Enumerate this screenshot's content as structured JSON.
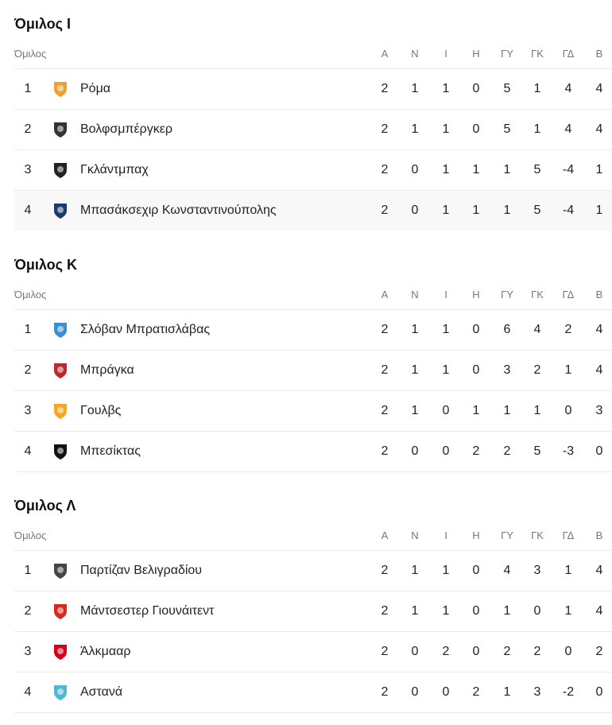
{
  "columns": [
    "Α",
    "Ν",
    "Ι",
    "Η",
    "ΓΥ",
    "ΓΚ",
    "ΓΔ",
    "Β"
  ],
  "group_col_label": "Όμιλος",
  "groups": [
    {
      "title": "Όμιλος I",
      "rows": [
        {
          "rank": "1",
          "team": "Ρόμα",
          "logo": "roma-crest-icon",
          "color": "#f0a030",
          "stats": [
            "2",
            "1",
            "1",
            "0",
            "5",
            "1",
            "4",
            "4"
          ]
        },
        {
          "rank": "2",
          "team": "Βολφσμπέργκερ",
          "logo": "wolfsberger-crest-icon",
          "color": "#333333",
          "stats": [
            "2",
            "1",
            "1",
            "0",
            "5",
            "1",
            "4",
            "4"
          ]
        },
        {
          "rank": "3",
          "team": "Γκλάντμπαχ",
          "logo": "gladbach-crest-icon",
          "color": "#222222",
          "stats": [
            "2",
            "0",
            "1",
            "1",
            "1",
            "5",
            "-4",
            "1"
          ]
        },
        {
          "rank": "4",
          "team": "Μπασάκσεχιρ Κωνσταντινούπολης",
          "logo": "basaksehir-crest-icon",
          "color": "#1e3a6e",
          "highlight": true,
          "stats": [
            "2",
            "0",
            "1",
            "1",
            "1",
            "5",
            "-4",
            "1"
          ]
        }
      ]
    },
    {
      "title": "Όμιλος Κ",
      "rows": [
        {
          "rank": "1",
          "team": "Σλόβαν Μπρατισλάβας",
          "logo": "slovan-crest-icon",
          "color": "#3a8fd0",
          "stats": [
            "2",
            "1",
            "1",
            "0",
            "6",
            "4",
            "2",
            "4"
          ]
        },
        {
          "rank": "2",
          "team": "Μπράγκα",
          "logo": "braga-crest-icon",
          "color": "#c0272d",
          "stats": [
            "2",
            "1",
            "1",
            "0",
            "3",
            "2",
            "1",
            "4"
          ]
        },
        {
          "rank": "3",
          "team": "Γουλβς",
          "logo": "wolves-crest-icon",
          "color": "#f5a623",
          "stats": [
            "2",
            "1",
            "0",
            "1",
            "1",
            "1",
            "0",
            "3"
          ]
        },
        {
          "rank": "4",
          "team": "Μπεσίκτας",
          "logo": "besiktas-crest-icon",
          "color": "#111111",
          "stats": [
            "2",
            "0",
            "0",
            "2",
            "2",
            "5",
            "-3",
            "0"
          ]
        }
      ]
    },
    {
      "title": "Όμιλος Λ",
      "rows": [
        {
          "rank": "1",
          "team": "Παρτίζαν Βελιγραδίου",
          "logo": "partizan-crest-icon",
          "color": "#444444",
          "stats": [
            "2",
            "1",
            "1",
            "0",
            "4",
            "3",
            "1",
            "4"
          ]
        },
        {
          "rank": "2",
          "team": "Μάντσεστερ Γιουνάιτεντ",
          "logo": "man-utd-crest-icon",
          "color": "#d52b1e",
          "stats": [
            "2",
            "1",
            "1",
            "0",
            "1",
            "0",
            "1",
            "4"
          ]
        },
        {
          "rank": "3",
          "team": "Άλκμααρ",
          "logo": "az-crest-icon",
          "color": "#d4001a",
          "stats": [
            "2",
            "0",
            "2",
            "0",
            "2",
            "2",
            "0",
            "2"
          ]
        },
        {
          "rank": "4",
          "team": "Αστανά",
          "logo": "astana-crest-icon",
          "color": "#4fb8d6",
          "stats": [
            "2",
            "0",
            "0",
            "2",
            "1",
            "3",
            "-2",
            "0"
          ]
        }
      ]
    }
  ]
}
